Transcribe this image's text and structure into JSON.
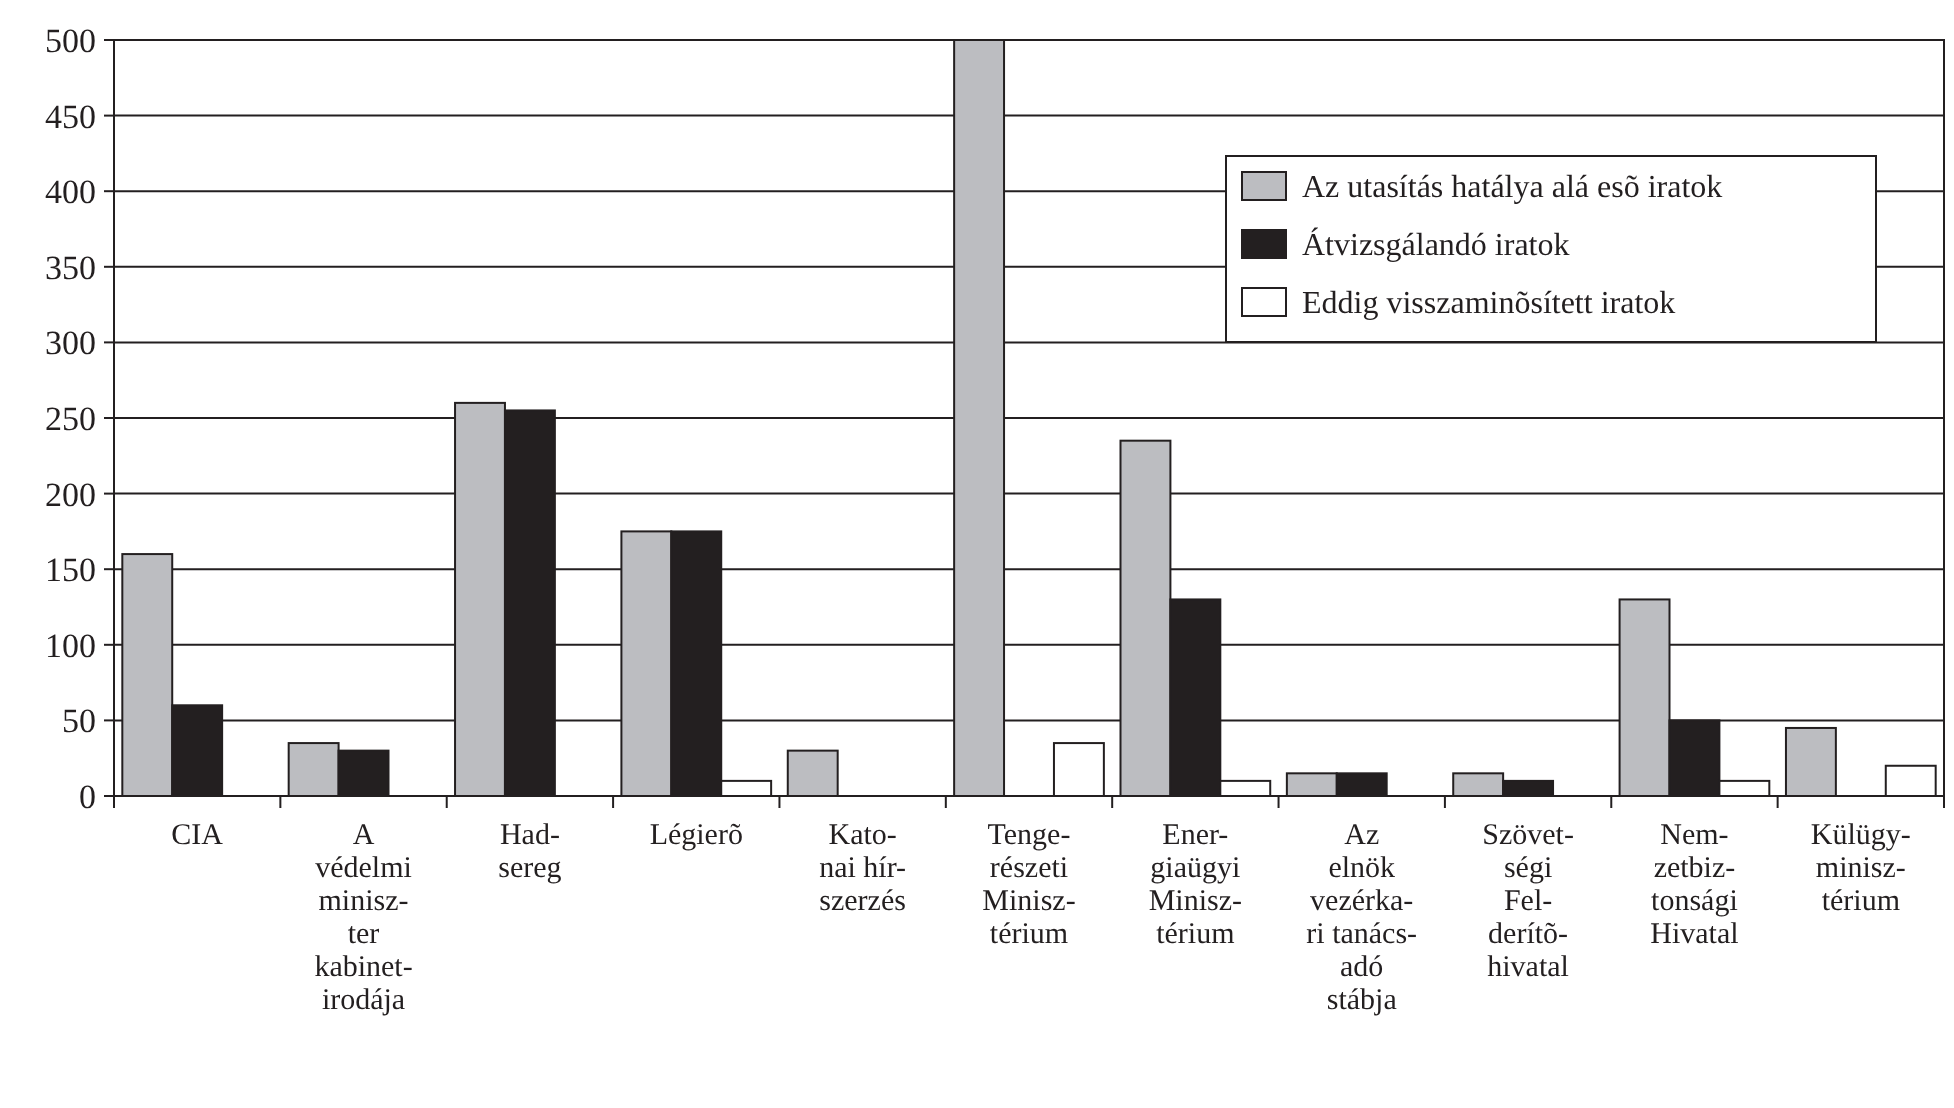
{
  "chart_data": {
    "type": "bar",
    "categories": [
      "CIA",
      "A\nvédelmi\nminisz-\nter\nkabinet-\nirodája",
      "Had-\nsereg",
      "Légierõ",
      "Kato-\nnai hír-\nszerzés",
      "Tenge-\nrészeti\nMinisz-\ntérium",
      "Ener-\ngiaügyi\nMinisz-\ntérium",
      "Az\nelnök\nvezérka-\nri tanács-\nadó\nstábja",
      "Szövet-\nségi\nFel-\nderítõ-\nhivatal",
      "Nem-\nzetbiz-\ntonsági\nHivatal",
      "Külügy-\nminisz-\ntérium"
    ],
    "series": [
      {
        "name": "Az utasítás hatálya alá esõ iratok",
        "color": "#bcbdc1",
        "values": [
          160,
          35,
          260,
          175,
          30,
          500,
          235,
          15,
          15,
          130,
          45
        ]
      },
      {
        "name": "Átvizsgálandó iratok",
        "color": "#231f20",
        "values": [
          60,
          30,
          255,
          175,
          null,
          null,
          130,
          15,
          10,
          50,
          null
        ]
      },
      {
        "name": "Eddig visszaminõsített iratok",
        "color": "#ffffff",
        "values": [
          null,
          null,
          null,
          10,
          null,
          35,
          10,
          null,
          null,
          10,
          20
        ]
      }
    ],
    "ylim": [
      0,
      500
    ],
    "yticks": [
      0,
      50,
      100,
      150,
      200,
      250,
      300,
      350,
      400,
      450,
      500
    ],
    "grid": "y",
    "legend": "top right"
  }
}
